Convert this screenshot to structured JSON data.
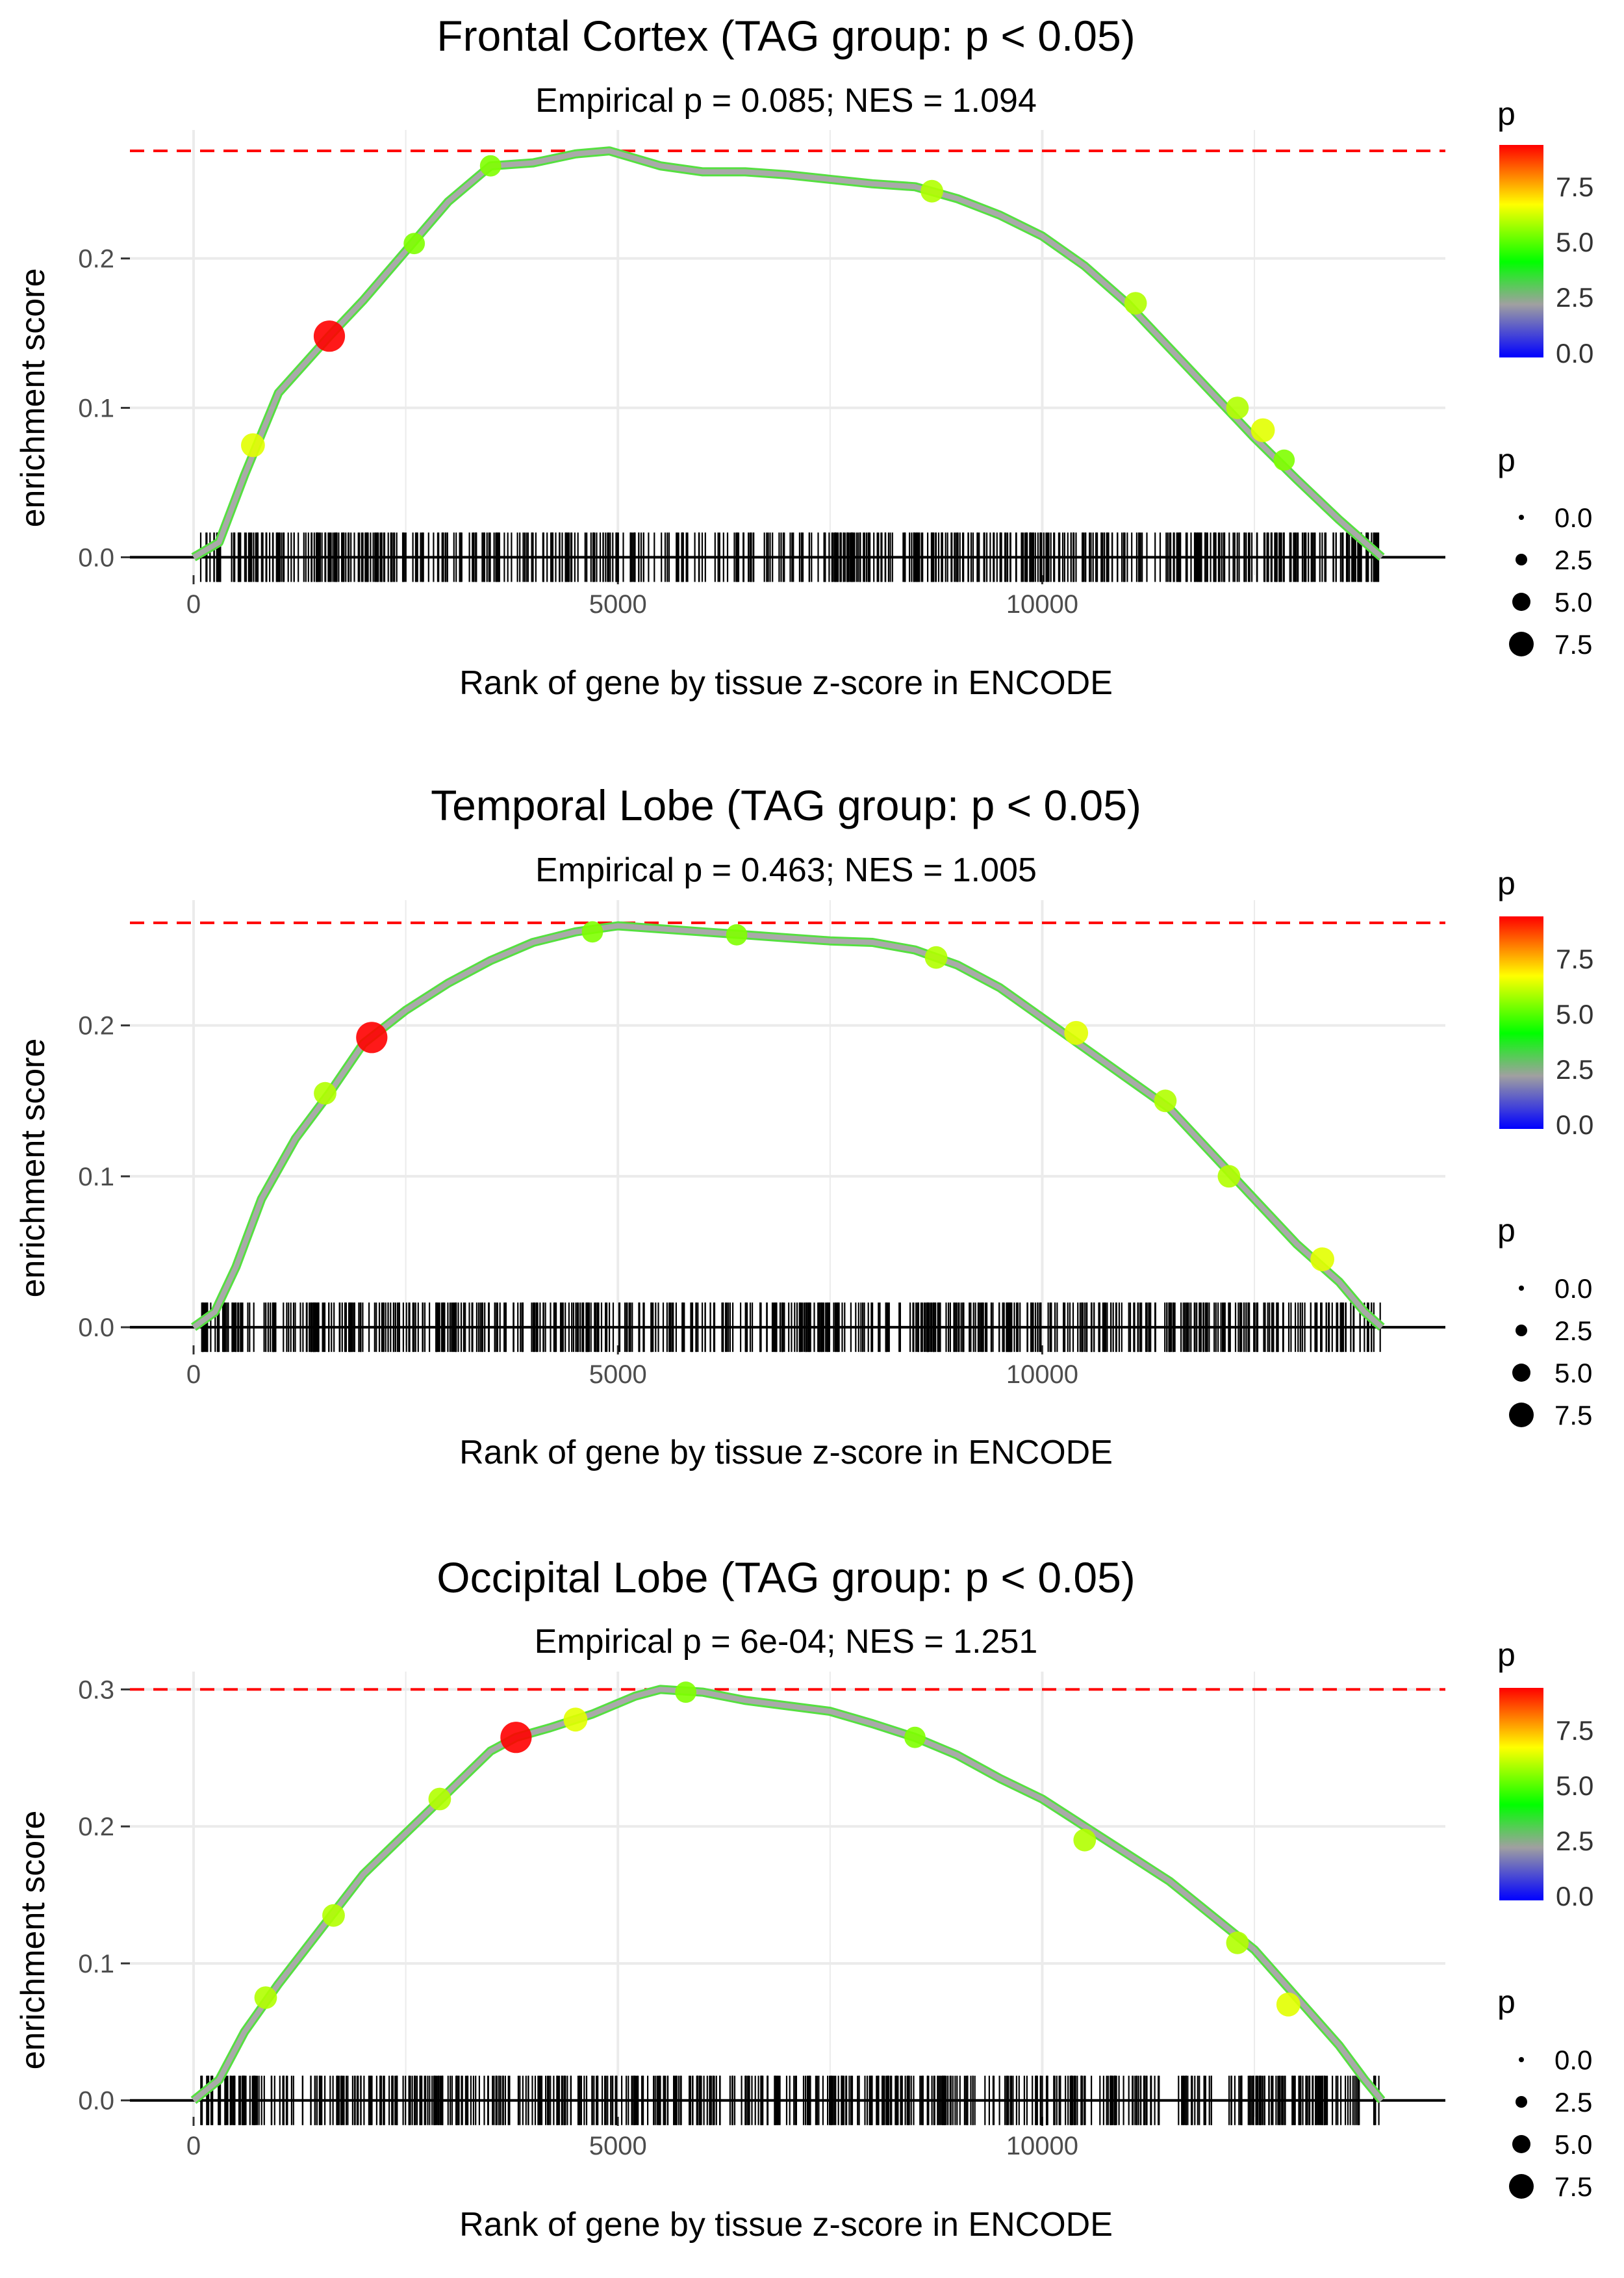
{
  "colors": {
    "grid": "#ebebeb",
    "curve": "#a9a9a9",
    "threshold": "#ff0000",
    "axis_line": "#000000",
    "rug": "#000000",
    "low": "#0000ff",
    "mid_low": "#a0a0a0",
    "mid": "#00ff00",
    "mid_high": "#ffff00",
    "high": "#ff0000"
  },
  "chart_data": [
    {
      "type": "line",
      "title": "Frontal Cortex (TAG group: p < 0.05)",
      "subtitle": "Empirical p = 0.085; NES = 1.094",
      "xlabel": "Rank of gene by tissue z-score in ENCODE",
      "ylabel": "enrichment score",
      "xlim": [
        -750,
        14750
      ],
      "ylim": [
        -0.012,
        0.286
      ],
      "x_ticks": [
        0,
        5000,
        10000
      ],
      "x_tick_labels": [
        "0",
        "5000",
        "10000"
      ],
      "y_ticks": [
        0.0,
        0.1,
        0.2
      ],
      "y_tick_labels": [
        "0.0",
        "0.1",
        "0.2"
      ],
      "max_es": 0.272,
      "n_genes": 14000,
      "curve": [
        [
          0,
          0
        ],
        [
          300,
          0.01
        ],
        [
          600,
          0.055
        ],
        [
          1000,
          0.11
        ],
        [
          1600,
          0.148
        ],
        [
          2000,
          0.172
        ],
        [
          2500,
          0.205
        ],
        [
          3000,
          0.238
        ],
        [
          3500,
          0.262
        ],
        [
          4000,
          0.264
        ],
        [
          4500,
          0.27
        ],
        [
          4900,
          0.272
        ],
        [
          5500,
          0.262
        ],
        [
          6000,
          0.258
        ],
        [
          6500,
          0.258
        ],
        [
          7000,
          0.256
        ],
        [
          7500,
          0.253
        ],
        [
          8000,
          0.25
        ],
        [
          8500,
          0.248
        ],
        [
          9000,
          0.24
        ],
        [
          9500,
          0.229
        ],
        [
          10000,
          0.215
        ],
        [
          10500,
          0.195
        ],
        [
          11000,
          0.17
        ],
        [
          11500,
          0.14
        ],
        [
          12000,
          0.11
        ],
        [
          12500,
          0.08
        ],
        [
          13000,
          0.052
        ],
        [
          13500,
          0.025
        ],
        [
          13800,
          0.01
        ],
        [
          14000,
          0
        ]
      ],
      "highlight_points": [
        {
          "x": 1600,
          "y": 0.148,
          "p": 9.5
        },
        {
          "x": 700,
          "y": 0.075,
          "p": 6.5
        },
        {
          "x": 2600,
          "y": 0.21,
          "p": 5.5
        },
        {
          "x": 3500,
          "y": 0.262,
          "p": 5.5
        },
        {
          "x": 8700,
          "y": 0.245,
          "p": 6.0
        },
        {
          "x": 11100,
          "y": 0.17,
          "p": 6.0
        },
        {
          "x": 12300,
          "y": 0.1,
          "p": 6.0
        },
        {
          "x": 12600,
          "y": 0.085,
          "p": 6.5
        },
        {
          "x": 12850,
          "y": 0.065,
          "p": 5.5
        }
      ],
      "legend_color_title": "p",
      "legend_color_ticks": [
        "7.5",
        "5.0",
        "2.5",
        "0.0"
      ],
      "legend_size_title": "p",
      "legend_size_labels": [
        "0.0",
        "2.5",
        "5.0",
        "7.5"
      ]
    },
    {
      "type": "line",
      "title": "Temporal Lobe (TAG group: p < 0.05)",
      "subtitle": "Empirical p = 0.463; NES = 1.005",
      "xlabel": "Rank of gene by tissue z-score in ENCODE",
      "ylabel": "enrichment score",
      "xlim": [
        -750,
        14750
      ],
      "ylim": [
        -0.012,
        0.283
      ],
      "x_ticks": [
        0,
        5000,
        10000
      ],
      "x_tick_labels": [
        "0",
        "5000",
        "10000"
      ],
      "y_ticks": [
        0.0,
        0.1,
        0.2
      ],
      "y_tick_labels": [
        "0.0",
        "0.1",
        "0.2"
      ],
      "max_es": 0.268,
      "n_genes": 14000,
      "curve": [
        [
          0,
          0
        ],
        [
          250,
          0.01
        ],
        [
          500,
          0.04
        ],
        [
          800,
          0.085
        ],
        [
          1200,
          0.125
        ],
        [
          1600,
          0.155
        ],
        [
          2000,
          0.188
        ],
        [
          2500,
          0.21
        ],
        [
          3000,
          0.228
        ],
        [
          3500,
          0.243
        ],
        [
          4000,
          0.255
        ],
        [
          4500,
          0.262
        ],
        [
          5000,
          0.266
        ],
        [
          5500,
          0.264
        ],
        [
          6000,
          0.262
        ],
        [
          6500,
          0.26
        ],
        [
          7000,
          0.258
        ],
        [
          7500,
          0.256
        ],
        [
          8000,
          0.255
        ],
        [
          8500,
          0.25
        ],
        [
          9000,
          0.24
        ],
        [
          9500,
          0.225
        ],
        [
          10000,
          0.205
        ],
        [
          10500,
          0.185
        ],
        [
          11000,
          0.165
        ],
        [
          11500,
          0.145
        ],
        [
          12000,
          0.115
        ],
        [
          12500,
          0.085
        ],
        [
          13000,
          0.055
        ],
        [
          13500,
          0.03
        ],
        [
          13800,
          0.01
        ],
        [
          14000,
          0
        ]
      ],
      "highlight_points": [
        {
          "x": 2100,
          "y": 0.192,
          "p": 9.5
        },
        {
          "x": 1550,
          "y": 0.155,
          "p": 6.0
        },
        {
          "x": 4700,
          "y": 0.262,
          "p": 5.5
        },
        {
          "x": 6400,
          "y": 0.26,
          "p": 5.5
        },
        {
          "x": 8750,
          "y": 0.245,
          "p": 6.0
        },
        {
          "x": 10400,
          "y": 0.195,
          "p": 6.5
        },
        {
          "x": 11450,
          "y": 0.15,
          "p": 6.0
        },
        {
          "x": 12200,
          "y": 0.1,
          "p": 6.0
        },
        {
          "x": 13300,
          "y": 0.045,
          "p": 6.5
        }
      ],
      "legend_color_title": "p",
      "legend_color_ticks": [
        "7.5",
        "5.0",
        "2.5",
        "0.0"
      ],
      "legend_size_title": "p",
      "legend_size_labels": [
        "0.0",
        "2.5",
        "5.0",
        "7.5"
      ]
    },
    {
      "type": "line",
      "title": "Occipital Lobe (TAG group: p < 0.05)",
      "subtitle": "Empirical p = 6e-04; NES = 1.251",
      "xlabel": "Rank of gene by tissue z-score in ENCODE",
      "ylabel": "enrichment score",
      "xlim": [
        -750,
        14750
      ],
      "ylim": [
        -0.012,
        0.313
      ],
      "x_ticks": [
        0,
        5000,
        10000
      ],
      "x_tick_labels": [
        "0",
        "5000",
        "10000"
      ],
      "y_ticks": [
        0.0,
        0.1,
        0.2,
        0.3
      ],
      "y_tick_labels": [
        "0.0",
        "0.1",
        "0.2",
        "0.3"
      ],
      "max_es": 0.3,
      "n_genes": 14000,
      "curve": [
        [
          0,
          0
        ],
        [
          300,
          0.015
        ],
        [
          600,
          0.05
        ],
        [
          1000,
          0.085
        ],
        [
          1500,
          0.125
        ],
        [
          2000,
          0.165
        ],
        [
          2500,
          0.195
        ],
        [
          3000,
          0.225
        ],
        [
          3500,
          0.255
        ],
        [
          3800,
          0.265
        ],
        [
          4200,
          0.272
        ],
        [
          4700,
          0.282
        ],
        [
          5200,
          0.295
        ],
        [
          5500,
          0.3
        ],
        [
          6000,
          0.298
        ],
        [
          6500,
          0.292
        ],
        [
          7000,
          0.288
        ],
        [
          7500,
          0.284
        ],
        [
          8000,
          0.275
        ],
        [
          8500,
          0.265
        ],
        [
          9000,
          0.252
        ],
        [
          9500,
          0.235
        ],
        [
          10000,
          0.22
        ],
        [
          10500,
          0.2
        ],
        [
          11000,
          0.18
        ],
        [
          11500,
          0.16
        ],
        [
          12000,
          0.135
        ],
        [
          12500,
          0.11
        ],
        [
          13000,
          0.075
        ],
        [
          13500,
          0.04
        ],
        [
          13800,
          0.015
        ],
        [
          14000,
          0
        ]
      ],
      "highlight_points": [
        {
          "x": 3800,
          "y": 0.265,
          "p": 9.5
        },
        {
          "x": 850,
          "y": 0.075,
          "p": 6.0
        },
        {
          "x": 1650,
          "y": 0.135,
          "p": 6.0
        },
        {
          "x": 2900,
          "y": 0.22,
          "p": 6.0
        },
        {
          "x": 4500,
          "y": 0.278,
          "p": 6.5
        },
        {
          "x": 5800,
          "y": 0.298,
          "p": 5.5
        },
        {
          "x": 8500,
          "y": 0.265,
          "p": 5.5
        },
        {
          "x": 10500,
          "y": 0.19,
          "p": 6.0
        },
        {
          "x": 12300,
          "y": 0.115,
          "p": 6.0
        },
        {
          "x": 12900,
          "y": 0.07,
          "p": 6.5
        }
      ],
      "legend_color_title": "p",
      "legend_color_ticks": [
        "7.5",
        "5.0",
        "2.5",
        "0.0"
      ],
      "legend_size_title": "p",
      "legend_size_labels": [
        "0.0",
        "2.5",
        "5.0",
        "7.5"
      ]
    }
  ]
}
